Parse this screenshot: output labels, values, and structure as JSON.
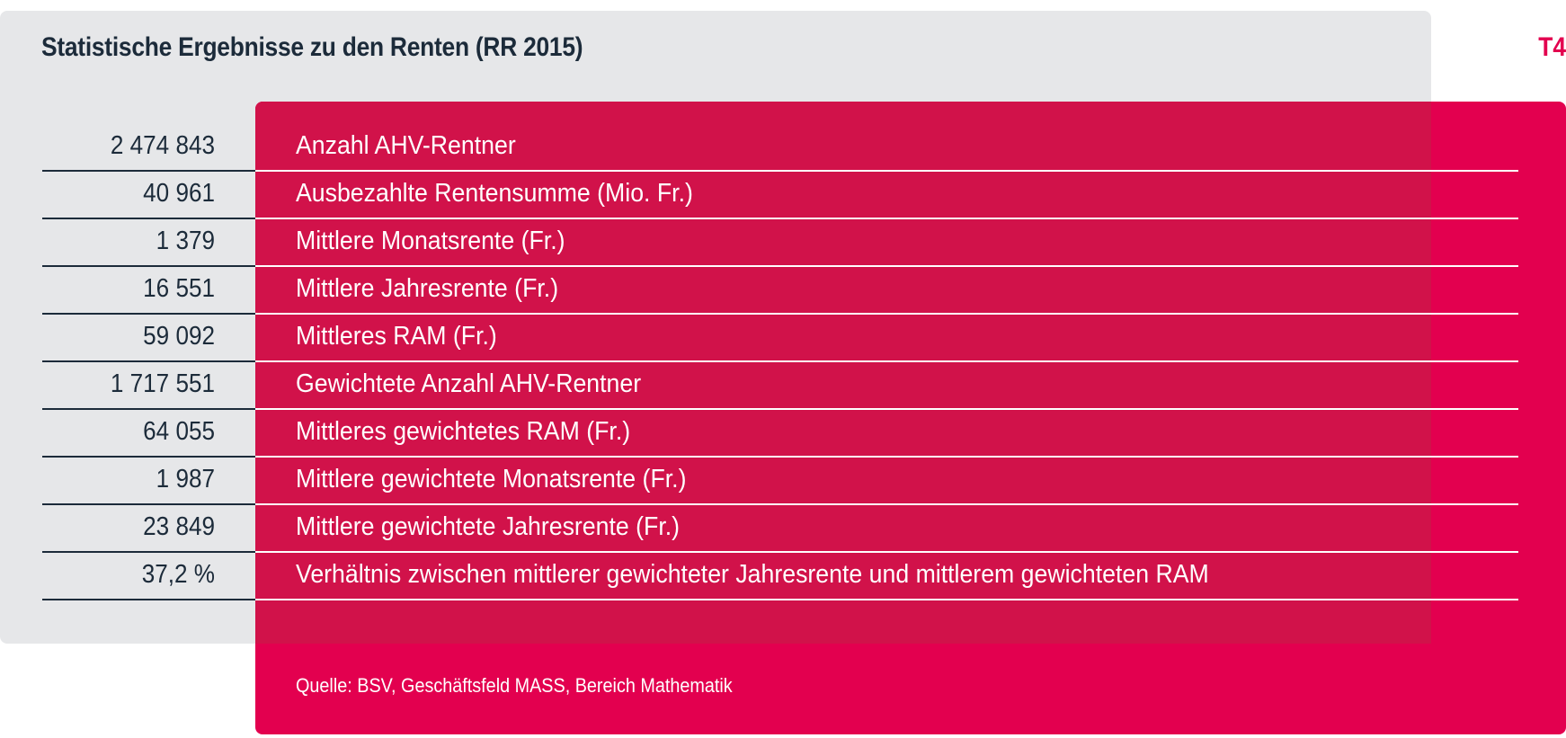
{
  "title": "Statistische Ergebnisse zu den Renten (RR 2015)",
  "tag": "T4",
  "rows": [
    {
      "value": "2 474 843",
      "label": "Anzahl AHV-Rentner"
    },
    {
      "value": "40 961",
      "label": "Ausbezahlte Rentensumme (Mio. Fr.)"
    },
    {
      "value": "1 379",
      "label": "Mittlere Monatsrente (Fr.)"
    },
    {
      "value": "16 551",
      "label": "Mittlere Jahresrente (Fr.)"
    },
    {
      "value": "59 092",
      "label": "Mittleres RAM (Fr.)"
    },
    {
      "value": "1 717 551",
      "label": "Gewichtete Anzahl AHV-Rentner"
    },
    {
      "value": "64 055",
      "label": "Mittleres gewichtetes RAM (Fr.)"
    },
    {
      "value": "1 987",
      "label": "Mittlere gewichtete Monatsrente (Fr.)"
    },
    {
      "value": "23 849",
      "label": "Mittlere gewichtete Jahresrente (Fr.)"
    },
    {
      "value": "37,2 %",
      "label": "Verhältnis zwischen mittlerer gewichteter Jahresrente und mittlerem gewichteten RAM"
    }
  ],
  "source": "Quelle: BSV, Geschäftsfeld MASS, Bereich Mathematik",
  "colors": {
    "accent": "#e3004f",
    "overlap": "#d1124a",
    "panel": "#e6e7e9",
    "text": "#1c2b3a"
  }
}
